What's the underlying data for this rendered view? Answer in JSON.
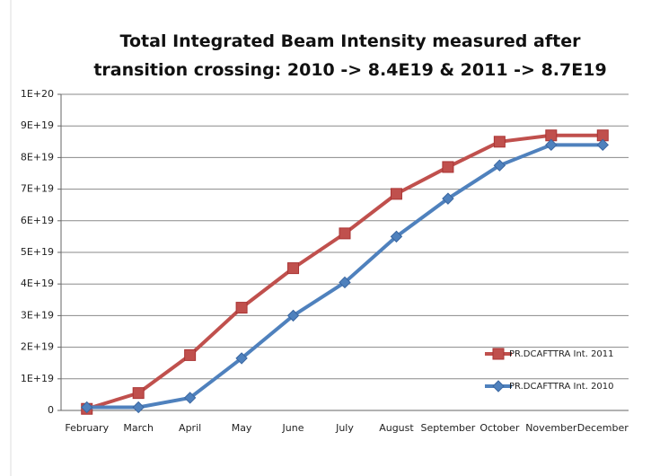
{
  "chart_data": {
    "type": "line",
    "title": "Total Integrated Beam Intensity measured after transition crossing: 2010 -> 8.4E19 & 2011 -> 8.7E19",
    "categories": [
      "February",
      "March",
      "April",
      "May",
      "June",
      "July",
      "August",
      "September",
      "October",
      "November",
      "December"
    ],
    "series": [
      {
        "name": "PR.DCAFTTRA Int. 2011",
        "color": "#c0504d",
        "marker": "square",
        "values": [
          5e+17,
          5.5e+18,
          1.75e+19,
          3.25e+19,
          4.5e+19,
          5.6e+19,
          6.85e+19,
          7.7e+19,
          8.5e+19,
          8.7e+19,
          8.7e+19
        ]
      },
      {
        "name": "PR.DCAFTTRA Int. 2010",
        "color": "#4f81bd",
        "marker": "diamond",
        "values": [
          1e+18,
          1e+18,
          4e+18,
          1.65e+19,
          3e+19,
          4.05e+19,
          5.5e+19,
          6.7e+19,
          7.75e+19,
          8.4e+19,
          8.4e+19
        ]
      }
    ],
    "ylim": [
      0,
      1e+20
    ],
    "yticks": [
      0,
      {
        "value": 1e+19,
        "label": "1E+19"
      },
      {
        "value": 2e+19,
        "label": "2E+19"
      },
      {
        "value": 3e+19,
        "label": "3E+19"
      },
      {
        "value": 4e+19,
        "label": "4E+19"
      },
      {
        "value": 5e+19,
        "label": "5E+19"
      },
      {
        "value": 6e+19,
        "label": "6E+19"
      },
      {
        "value": 7e+19,
        "label": "7E+19"
      },
      {
        "value": 8e+19,
        "label": "8E+19"
      },
      {
        "value": 9e+19,
        "label": "9E+19"
      },
      {
        "value": 1e+20,
        "label": "1E+20"
      }
    ],
    "grid": true,
    "legend": "lower right"
  }
}
